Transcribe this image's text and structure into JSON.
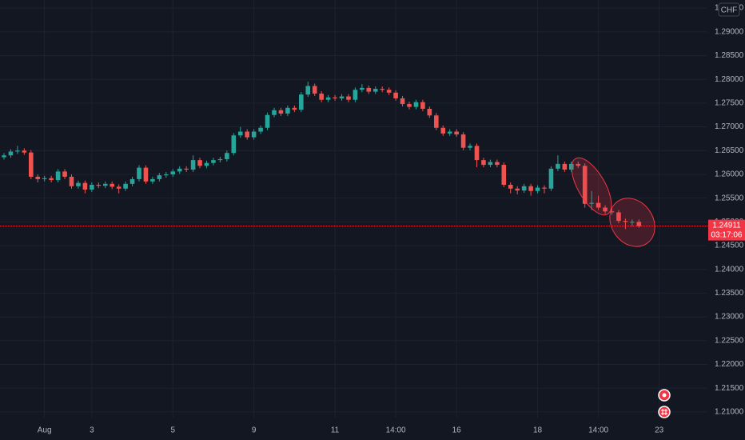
{
  "chart_data": {
    "type": "candlestick",
    "currency": "CHF",
    "categories": [
      null,
      null,
      null,
      null,
      null,
      null,
      "Aug",
      null,
      null,
      null,
      null,
      null,
      null,
      "3",
      null,
      null,
      null,
      null,
      null,
      null,
      null,
      null,
      null,
      null,
      null,
      "5",
      null,
      null,
      null,
      null,
      null,
      null,
      null,
      null,
      null,
      null,
      null,
      "9",
      null,
      null,
      null,
      null,
      null,
      null,
      null,
      null,
      null,
      null,
      null,
      "11",
      null,
      null,
      null,
      null,
      null,
      null,
      null,
      null,
      "14:00",
      null,
      null,
      null,
      null,
      null,
      null,
      null,
      null,
      "16",
      null,
      null,
      null,
      null,
      null,
      null,
      null,
      null,
      null,
      null,
      null,
      "18",
      null,
      null,
      null,
      null,
      null,
      null,
      null,
      null,
      "14:00",
      null,
      null,
      null,
      null,
      null,
      null,
      null,
      null,
      "23"
    ],
    "open": [
      1.2636,
      1.264,
      1.2648,
      1.265,
      1.2646,
      1.2595,
      1.259,
      1.2592,
      1.2588,
      1.2606,
      1.2595,
      1.2575,
      1.2582,
      1.2568,
      1.2578,
      1.2576,
      1.258,
      1.2574,
      1.257,
      1.258,
      1.259,
      1.2614,
      1.2585,
      1.259,
      1.2598,
      1.26,
      1.2606,
      1.2612,
      1.261,
      1.263,
      1.2618,
      1.2624,
      1.263,
      1.2632,
      1.2645,
      1.2682,
      1.269,
      1.2678,
      1.269,
      1.2698,
      1.2725,
      1.2735,
      1.2728,
      1.274,
      1.2736,
      1.2768,
      1.2786,
      1.277,
      1.2757,
      1.2762,
      1.276,
      1.2764,
      1.2757,
      1.2778,
      1.2782,
      1.2774,
      1.278,
      1.2778,
      1.2772,
      1.276,
      1.2748,
      1.2742,
      1.2752,
      1.2738,
      1.2724,
      1.2698,
      1.2686,
      1.269,
      1.2684,
      1.2656,
      1.266,
      1.263,
      1.262,
      1.2626,
      1.262,
      1.2578,
      1.257,
      1.2566,
      1.2575,
      1.2565,
      1.2572,
      1.257,
      1.2612,
      1.2622,
      1.261,
      1.2622,
      1.2618,
      1.2538,
      1.254,
      1.253,
      1.2522,
      1.252,
      1.2502,
      1.25,
      1.25,
      null,
      null,
      null
    ],
    "high": [
      1.2645,
      1.2653,
      1.266,
      1.2655,
      1.2651,
      1.26,
      1.2597,
      1.2597,
      1.2611,
      1.2611,
      1.26,
      1.2587,
      1.2587,
      1.2583,
      1.2583,
      1.2585,
      1.2585,
      1.2579,
      1.2585,
      1.2595,
      1.2619,
      1.2619,
      1.2595,
      1.2603,
      1.2605,
      1.2611,
      1.2617,
      1.2617,
      1.264,
      1.2635,
      1.2629,
      1.2635,
      1.2637,
      1.265,
      1.2687,
      1.27,
      1.2695,
      1.2695,
      1.2703,
      1.273,
      1.274,
      1.274,
      1.2745,
      1.2745,
      1.2773,
      1.2795,
      1.2791,
      1.2775,
      1.2767,
      1.2767,
      1.2769,
      1.2769,
      1.2783,
      1.279,
      1.2787,
      1.2785,
      1.2785,
      1.2783,
      1.2777,
      1.2765,
      1.2753,
      1.2757,
      1.2757,
      1.2743,
      1.2729,
      1.2703,
      1.2695,
      1.2695,
      1.2689,
      1.2665,
      1.2665,
      1.2635,
      1.2631,
      1.2631,
      1.2625,
      1.2583,
      1.2575,
      1.258,
      1.258,
      1.2577,
      1.2577,
      1.2617,
      1.264,
      1.2627,
      1.2627,
      1.2627,
      1.2623,
      1.2565,
      1.2555,
      1.2535,
      1.2527,
      1.2525,
      1.2507,
      1.2505,
      1.2505,
      null,
      null,
      null
    ],
    "low": [
      1.2631,
      1.2635,
      1.2643,
      1.2641,
      1.259,
      1.2583,
      1.2585,
      1.2583,
      1.2583,
      1.259,
      1.257,
      1.257,
      1.256,
      1.2563,
      1.2571,
      1.2571,
      1.2569,
      1.256,
      1.2565,
      1.2575,
      1.2585,
      1.258,
      1.258,
      1.2585,
      1.2593,
      1.2595,
      1.2601,
      1.2605,
      1.2605,
      1.2613,
      1.2613,
      1.2619,
      1.2625,
      1.2627,
      1.264,
      1.2677,
      1.2673,
      1.2673,
      1.2685,
      1.2693,
      1.272,
      1.2723,
      1.2723,
      1.2731,
      1.2731,
      1.2763,
      1.2765,
      1.2752,
      1.2752,
      1.2755,
      1.2755,
      1.2752,
      1.2752,
      1.2773,
      1.2769,
      1.2769,
      1.2773,
      1.2767,
      1.2755,
      1.2743,
      1.2737,
      1.2737,
      1.2733,
      1.2719,
      1.2693,
      1.2681,
      1.2681,
      1.2679,
      1.2651,
      1.2651,
      1.2615,
      1.2615,
      1.2615,
      1.2615,
      1.2573,
      1.256,
      1.2558,
      1.2561,
      1.2555,
      1.256,
      1.256,
      1.2565,
      1.2607,
      1.2605,
      1.2605,
      1.2613,
      1.253,
      1.2525,
      1.2525,
      1.2517,
      1.2515,
      1.2497,
      1.2485,
      1.249,
      1.2488,
      null,
      null,
      null
    ],
    "close": [
      1.264,
      1.2648,
      1.265,
      1.2646,
      1.2595,
      1.259,
      1.2592,
      1.2588,
      1.2606,
      1.2595,
      1.2575,
      1.2582,
      1.2568,
      1.2578,
      1.2576,
      1.258,
      1.2574,
      1.257,
      1.258,
      1.259,
      1.2614,
      1.2585,
      1.259,
      1.2598,
      1.26,
      1.2606,
      1.2612,
      1.261,
      1.263,
      1.2618,
      1.2624,
      1.263,
      1.2632,
      1.2645,
      1.2682,
      1.269,
      1.2678,
      1.269,
      1.2698,
      1.2725,
      1.2735,
      1.2728,
      1.274,
      1.2736,
      1.2768,
      1.2786,
      1.277,
      1.2757,
      1.2762,
      1.276,
      1.2764,
      1.2757,
      1.2778,
      1.2782,
      1.2774,
      1.278,
      1.2778,
      1.2772,
      1.276,
      1.2748,
      1.2742,
      1.2752,
      1.2738,
      1.2724,
      1.2698,
      1.2686,
      1.269,
      1.2684,
      1.2656,
      1.266,
      1.263,
      1.262,
      1.2626,
      1.262,
      1.2578,
      1.257,
      1.2566,
      1.2575,
      1.2565,
      1.2572,
      1.257,
      1.2612,
      1.2622,
      1.261,
      1.2622,
      1.2618,
      1.2538,
      1.254,
      1.253,
      1.2522,
      1.252,
      1.2502,
      1.25,
      1.25,
      1.2491,
      null,
      null,
      null
    ],
    "up_color": "#26a69a",
    "down_color": "#ef5350",
    "last_price": 1.24911,
    "countdown": "03:17:06",
    "last_price_color": "#f23645",
    "ylim": [
      1.2088,
      1.2967
    ],
    "yticks": [
      {
        "value": 1.21,
        "label": "1.21000"
      },
      {
        "value": 1.215,
        "label": "1.21500"
      },
      {
        "value": 1.22,
        "label": "1.22000"
      },
      {
        "value": 1.225,
        "label": "1.22500"
      },
      {
        "value": 1.23,
        "label": "1.23000"
      },
      {
        "value": 1.235,
        "label": "1.23500"
      },
      {
        "value": 1.24,
        "label": "1.24000"
      },
      {
        "value": 1.245,
        "label": "1.24500"
      },
      {
        "value": 1.25,
        "label": "1.25000"
      },
      {
        "value": 1.255,
        "label": "1.25500"
      },
      {
        "value": 1.26,
        "label": "1.26000"
      },
      {
        "value": 1.265,
        "label": "1.26500"
      },
      {
        "value": 1.27,
        "label": "1.27000"
      },
      {
        "value": 1.275,
        "label": "1.27500"
      },
      {
        "value": 1.28,
        "label": "1.28000"
      },
      {
        "value": 1.285,
        "label": "1.28500"
      },
      {
        "value": 1.29,
        "label": "1.29000"
      },
      {
        "value": 1.295,
        "label": "1.29500"
      }
    ],
    "grid": true
  }
}
